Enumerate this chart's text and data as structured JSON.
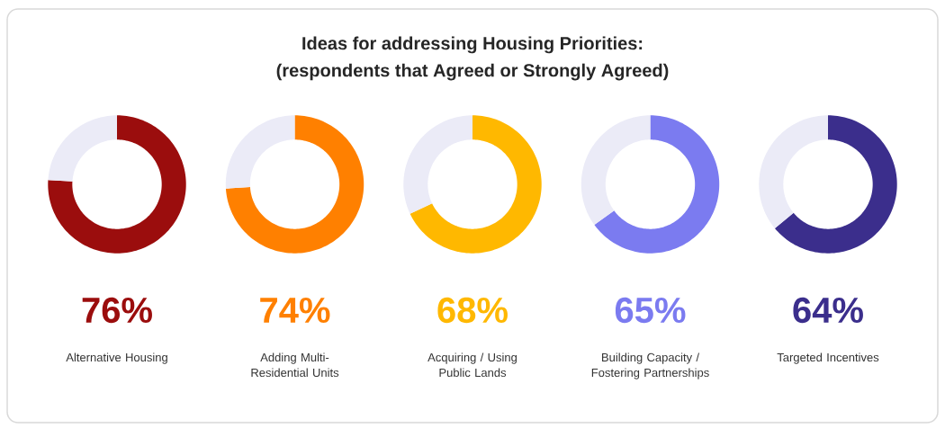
{
  "chart_data": [
    {
      "type": "other",
      "title": "Ideas for addressing Housing Priorities:",
      "subtitle": "(respondents that Agreed or Strongly Agreed)"
    },
    {
      "type": "donut",
      "xlabel": "Alternative Housing",
      "categories": [
        null,
        null
      ],
      "values": [
        76,
        24
      ],
      "colors": [
        "#9b0d0d",
        "#ebebf7"
      ],
      "value_labels": [
        "76%",
        null
      ]
    },
    {
      "type": "donut",
      "xlabel": "Adding Multi-Residential Units",
      "categories": [
        null,
        null
      ],
      "values": [
        74,
        26
      ],
      "colors": [
        "#ff8000",
        "#ebebf7"
      ],
      "value_labels": [
        "74%",
        null
      ]
    },
    {
      "type": "donut",
      "xlabel": "Acquiring / Using Public Lands",
      "categories": [
        null,
        null
      ],
      "values": [
        68,
        32
      ],
      "colors": [
        "#ffb800",
        "#ebebf7"
      ],
      "value_labels": [
        "68%",
        null
      ]
    },
    {
      "type": "donut",
      "xlabel": "Building Capacity / Fostering Partnerships",
      "categories": [
        null,
        null
      ],
      "values": [
        65,
        35
      ],
      "colors": [
        "#7b7bf0",
        "#ebebf7"
      ],
      "value_labels": [
        "65%",
        null
      ]
    },
    {
      "type": "donut",
      "xlabel": "Targeted Incentives",
      "categories": [
        null,
        null
      ],
      "values": [
        64,
        36
      ],
      "colors": [
        "#3b2e8c",
        "#ebebf7"
      ],
      "value_labels": [
        "64%",
        null
      ]
    }
  ]
}
